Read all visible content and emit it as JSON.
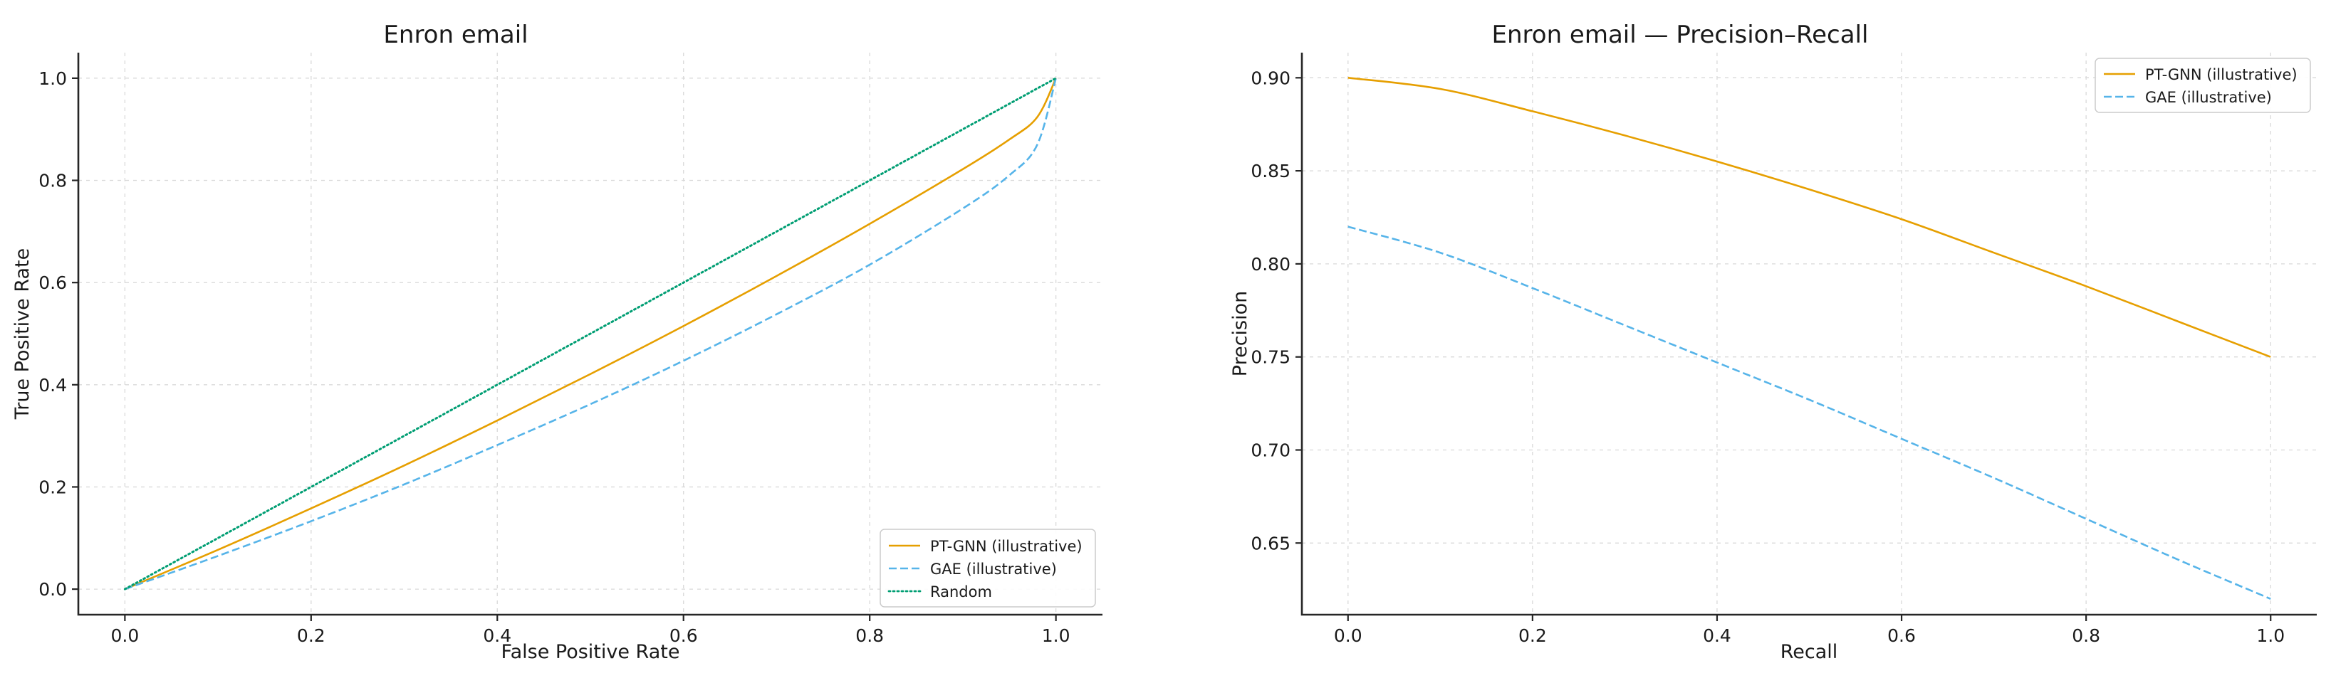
{
  "chart_data": [
    {
      "type": "line",
      "title": "Enron email",
      "xlabel": "False Positive Rate",
      "ylabel": "True Positive Rate",
      "xlim": [
        -0.05,
        1.05
      ],
      "ylim": [
        -0.05,
        1.05
      ],
      "xticks": [
        0.0,
        0.2,
        0.4,
        0.6,
        0.8,
        1.0
      ],
      "yticks": [
        0.0,
        0.2,
        0.4,
        0.6,
        0.8,
        1.0
      ],
      "xtick_labels": [
        "0.0",
        "0.2",
        "0.4",
        "0.6",
        "0.8",
        "1.0"
      ],
      "ytick_labels": [
        "0.0",
        "0.2",
        "0.4",
        "0.6",
        "0.8",
        "1.0"
      ],
      "grid": true,
      "legend_position": "bottom-right",
      "series": [
        {
          "name": "PT-GNN (illustrative)",
          "color": "#E69F00",
          "style": "solid",
          "x": [
            0,
            0.1,
            0.2,
            0.3,
            0.4,
            0.5,
            0.6,
            0.7,
            0.8,
            0.9,
            0.95,
            0.98,
            1.0
          ],
          "y": [
            0,
            0.077,
            0.158,
            0.242,
            0.33,
            0.421,
            0.515,
            0.613,
            0.715,
            0.822,
            0.88,
            0.924,
            1.0
          ]
        },
        {
          "name": "GAE (illustrative)",
          "color": "#56B4E9",
          "style": "dashed",
          "x": [
            0,
            0.1,
            0.2,
            0.3,
            0.4,
            0.5,
            0.6,
            0.7,
            0.8,
            0.9,
            0.95,
            0.98,
            1.0
          ],
          "y": [
            0,
            0.065,
            0.133,
            0.205,
            0.282,
            0.362,
            0.447,
            0.538,
            0.635,
            0.745,
            0.81,
            0.87,
            1.0
          ]
        },
        {
          "name": "Random",
          "color": "#009E73",
          "style": "dotted",
          "x": [
            0,
            1
          ],
          "y": [
            0,
            1
          ]
        }
      ]
    },
    {
      "type": "line",
      "title": "Enron email — Precision–Recall",
      "xlabel": "Recall",
      "ylabel": "Precision",
      "xlim": [
        -0.05,
        1.05
      ],
      "ylim": [
        0.6115,
        0.9135
      ],
      "xticks": [
        0.0,
        0.2,
        0.4,
        0.6,
        0.8,
        1.0
      ],
      "yticks": [
        0.65,
        0.7,
        0.75,
        0.8,
        0.85,
        0.9
      ],
      "xtick_labels": [
        "0.0",
        "0.2",
        "0.4",
        "0.6",
        "0.8",
        "1.0"
      ],
      "ytick_labels": [
        "0.65",
        "0.70",
        "0.75",
        "0.80",
        "0.85",
        "0.90"
      ],
      "grid": true,
      "legend_position": "top-right",
      "series": [
        {
          "name": "PT-GNN (illustrative)",
          "color": "#E69F00",
          "style": "solid",
          "x": [
            0,
            0.1,
            0.2,
            0.3,
            0.4,
            0.5,
            0.6,
            0.7,
            0.8,
            0.9,
            1.0
          ],
          "y": [
            0.9,
            0.894,
            0.882,
            0.869,
            0.855,
            0.84,
            0.824,
            0.806,
            0.788,
            0.769,
            0.75
          ]
        },
        {
          "name": "GAE (illustrative)",
          "color": "#56B4E9",
          "style": "dashed",
          "x": [
            0,
            0.1,
            0.2,
            0.3,
            0.4,
            0.5,
            0.6,
            0.7,
            0.8,
            0.9,
            1.0
          ],
          "y": [
            0.82,
            0.806,
            0.787,
            0.767,
            0.747,
            0.727,
            0.706,
            0.685,
            0.663,
            0.641,
            0.62
          ]
        }
      ]
    }
  ]
}
